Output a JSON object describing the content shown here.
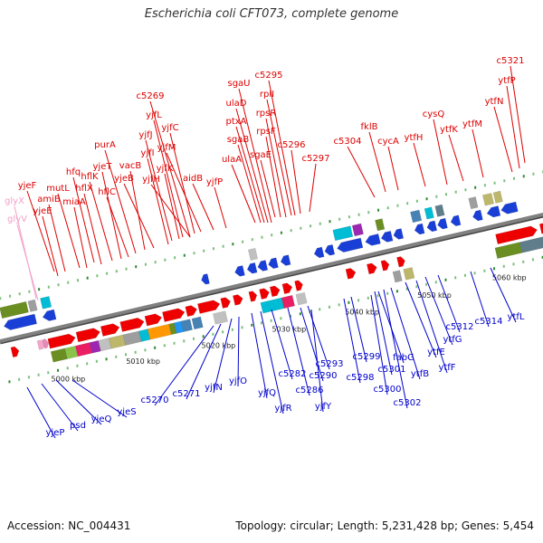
{
  "title": "Escherichia coli CFT073, complete genome",
  "footer": {
    "accession": "Accession: NC_004431",
    "summary": "Topology: circular; Length: 5,231,428 bp; Genes: 5,454"
  },
  "colors": {
    "forward_label": "#dd0000",
    "reverse_label": "#0000cc",
    "rna_label": "#f2a0c8",
    "backbone": "#808080"
  },
  "ticks": [
    {
      "label": "5000 kbp"
    },
    {
      "label": "5010 kbp"
    },
    {
      "label": "5020 kbp"
    },
    {
      "label": "5030 kbp"
    },
    {
      "label": "5040 kbp"
    },
    {
      "label": "5050 kbp"
    },
    {
      "label": "5060 kbp"
    }
  ],
  "labels": {
    "rna": [
      "glyX",
      "glyV"
    ],
    "forward": [
      "yjeF",
      "amiB",
      "yjeE",
      "mutL",
      "miaA",
      "hfq",
      "hflX",
      "hflK",
      "yjeT",
      "hflC",
      "purA",
      "vacB",
      "yjeB",
      "yjfI",
      "yjfJ",
      "yjfK",
      "yjfL",
      "c5269",
      "yjfH",
      "yjfC",
      "yjfM",
      "aidB",
      "yjfP",
      "ulaA",
      "sgaB",
      "ptxA",
      "ulaD",
      "sgaU",
      "sgaE",
      "rpsF",
      "rpsR",
      "rplI",
      "c5295",
      "c5296",
      "c5297",
      "c5304",
      "fklB",
      "cycA",
      "ytfH",
      "cysQ",
      "ytfK",
      "ytfM",
      "ytfN",
      "ytfP",
      "c5321"
    ],
    "reverse": [
      "yjeP",
      "psd",
      "yjeQ",
      "yjeS",
      "c5270",
      "c5271",
      "yjfN",
      "yjfO",
      "yjfQ",
      "yjfR",
      "c5282",
      "c5286",
      "c5290",
      "c5293",
      "yjfY",
      "c5298",
      "c5299",
      "c5300",
      "c5301",
      "fabG",
      "c5302",
      "ytfB",
      "ytfE",
      "ytfF",
      "ytfG",
      "c5312",
      "c5314",
      "ytfL"
    ]
  }
}
